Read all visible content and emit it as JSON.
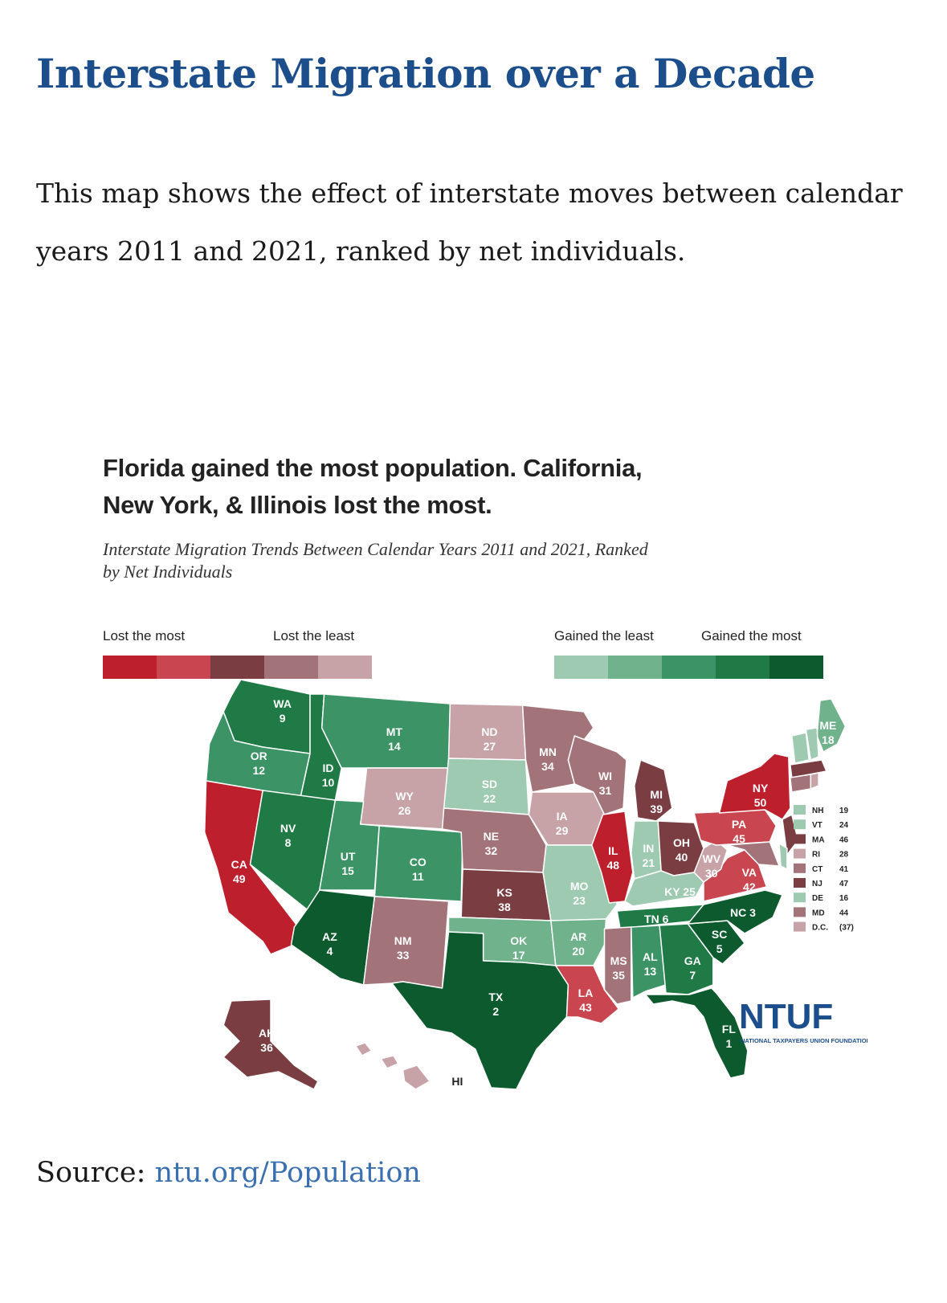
{
  "title": "Interstate Migration over a Decade",
  "intro": "This map shows the effect of interstate moves between calendar years 2011 and 2021, ranked by net individuals.",
  "figure": {
    "headline_line1": "Florida gained the most population. California,",
    "headline_line2": "New York, & Illinois lost the most.",
    "subtitle_line1": "Interstate Migration Trends Between Calendar Years 2011 and 2021, Ranked",
    "subtitle_line2": "by Net Individuals",
    "legend": {
      "lost_most": "Lost the most",
      "lost_least": "Lost the least",
      "gained_least": "Gained the least",
      "gained_most": "Gained the most",
      "lost_colors": [
        "#bd1f2d",
        "#c94650",
        "#7a3d42",
        "#a3737a",
        "#c7a3a8"
      ],
      "gained_colors": [
        "#9dcab0",
        "#6fb28c",
        "#3c9466",
        "#1f7a46",
        "#0c5a2e"
      ]
    },
    "logo": {
      "text": "NTUF",
      "tagline": "NATIONAL TAXPAYERS UNION FOUNDATION"
    },
    "states": {
      "WA": {
        "abbr": "WA",
        "rank": "9"
      },
      "OR": {
        "abbr": "OR",
        "rank": "12"
      },
      "CA": {
        "abbr": "CA",
        "rank": "49"
      },
      "ID": {
        "abbr": "ID",
        "rank": "10"
      },
      "NV": {
        "abbr": "NV",
        "rank": "8"
      },
      "MT": {
        "abbr": "MT",
        "rank": "14"
      },
      "WY": {
        "abbr": "WY",
        "rank": "26"
      },
      "UT": {
        "abbr": "UT",
        "rank": "15"
      },
      "CO": {
        "abbr": "CO",
        "rank": "11"
      },
      "AZ": {
        "abbr": "AZ",
        "rank": "4"
      },
      "NM": {
        "abbr": "NM",
        "rank": "33"
      },
      "ND": {
        "abbr": "ND",
        "rank": "27"
      },
      "SD": {
        "abbr": "SD",
        "rank": "22"
      },
      "NE": {
        "abbr": "NE",
        "rank": "32"
      },
      "KS": {
        "abbr": "KS",
        "rank": "38"
      },
      "OK": {
        "abbr": "OK",
        "rank": "17"
      },
      "TX": {
        "abbr": "TX",
        "rank": "2"
      },
      "MN": {
        "abbr": "MN",
        "rank": "34"
      },
      "IA": {
        "abbr": "IA",
        "rank": "29"
      },
      "MO": {
        "abbr": "MO",
        "rank": "23"
      },
      "AR": {
        "abbr": "AR",
        "rank": "20"
      },
      "LA": {
        "abbr": "LA",
        "rank": "43"
      },
      "WI": {
        "abbr": "WI",
        "rank": "31"
      },
      "IL": {
        "abbr": "IL",
        "rank": "48"
      },
      "MI": {
        "abbr": "MI",
        "rank": "39"
      },
      "IN": {
        "abbr": "IN",
        "rank": "21"
      },
      "OH": {
        "abbr": "OH",
        "rank": "40"
      },
      "KY": {
        "abbr": "KY",
        "rank": "25"
      },
      "TN": {
        "abbr": "TN",
        "rank": "6"
      },
      "MS": {
        "abbr": "MS",
        "rank": "35"
      },
      "AL": {
        "abbr": "AL",
        "rank": "13"
      },
      "GA": {
        "abbr": "GA",
        "rank": "7"
      },
      "FL": {
        "abbr": "FL",
        "rank": "1"
      },
      "SC": {
        "abbr": "SC",
        "rank": "5"
      },
      "NC": {
        "abbr": "NC",
        "rank": "3"
      },
      "VA": {
        "abbr": "VA",
        "rank": "42"
      },
      "WV": {
        "abbr": "WV",
        "rank": "30"
      },
      "PA": {
        "abbr": "PA",
        "rank": "45"
      },
      "NY": {
        "abbr": "NY",
        "rank": "50"
      },
      "ME": {
        "abbr": "ME",
        "rank": "18"
      },
      "AK": {
        "abbr": "AK",
        "rank": "36"
      },
      "HI": {
        "abbr": "HI"
      }
    },
    "small_states": [
      {
        "abbr": "NH",
        "rank": "19",
        "color": "#9dcab0"
      },
      {
        "abbr": "VT",
        "rank": "24",
        "color": "#9dcab0"
      },
      {
        "abbr": "MA",
        "rank": "46",
        "color": "#7a3d42"
      },
      {
        "abbr": "RI",
        "rank": "28",
        "color": "#c7a3a8"
      },
      {
        "abbr": "CT",
        "rank": "41",
        "color": "#a3737a"
      },
      {
        "abbr": "NJ",
        "rank": "47",
        "color": "#7a3d42"
      },
      {
        "abbr": "DE",
        "rank": "16",
        "color": "#9dcab0"
      },
      {
        "abbr": "MD",
        "rank": "44",
        "color": "#a3737a"
      },
      {
        "abbr": "D.C.",
        "rank": "(37)",
        "color": "#c7a3a8"
      }
    ]
  },
  "source": {
    "label": "Source:",
    "link": "ntu.org/Population"
  }
}
